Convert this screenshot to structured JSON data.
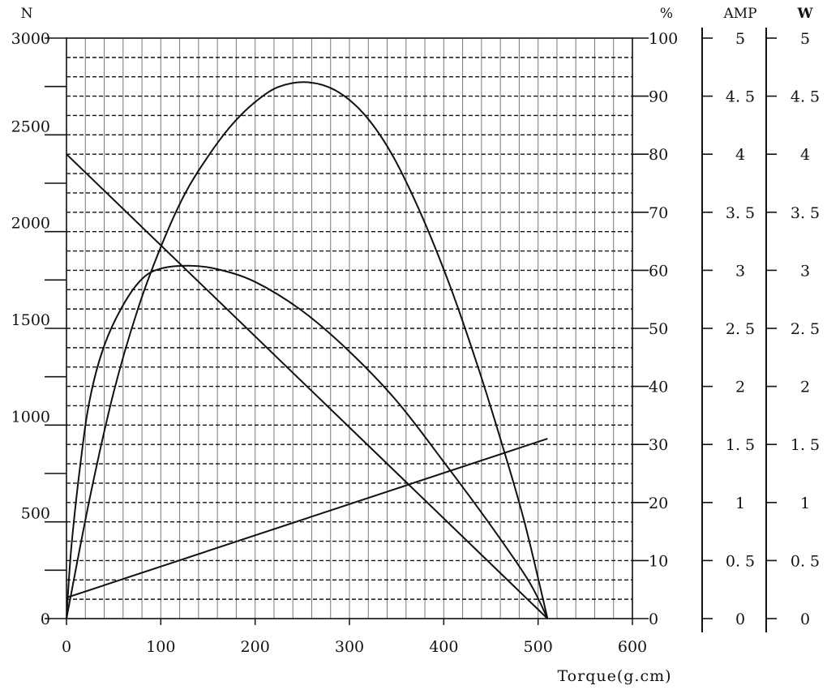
{
  "chart_data": {
    "type": "line",
    "xlabel": "Torque(g.cm)",
    "xlim": [
      0,
      600
    ],
    "x_ticks": [
      "0",
      "100",
      "200",
      "300",
      "400",
      "500",
      "600"
    ],
    "grid": true,
    "axes": {
      "left": {
        "unit": "N",
        "ylim": [
          0,
          3000
        ],
        "tick_labels": [
          {
            "value": 0,
            "label": "0"
          },
          {
            "value": 500,
            "label": "500"
          },
          {
            "value": 1000,
            "label": "1000"
          },
          {
            "value": 1500,
            "label": "1500"
          },
          {
            "value": 2000,
            "label": "2000"
          },
          {
            "value": 2500,
            "label": "2500"
          },
          {
            "value": 3000,
            "label": "3000"
          }
        ]
      },
      "percent": {
        "unit": "%",
        "ylim": [
          0,
          100
        ],
        "tick_labels": [
          "0",
          "10",
          "20",
          "30",
          "40",
          "50",
          "60",
          "70",
          "80",
          "90",
          "100"
        ]
      },
      "amp": {
        "unit": "AMP",
        "ylim": [
          0,
          5
        ],
        "tick_labels": [
          "0",
          "0. 5",
          "1",
          "1. 5",
          "2",
          "2. 5",
          "3",
          "3. 5",
          "4",
          "4. 5",
          "5"
        ]
      },
      "watt": {
        "unit": "W",
        "ylim": [
          0,
          5
        ],
        "tick_labels": [
          "0",
          "0. 5",
          "1",
          "1. 5",
          "2",
          "2. 5",
          "3",
          "3. 5",
          "4",
          "4. 5",
          "5"
        ]
      }
    },
    "series": [
      {
        "axis": "left",
        "points": [
          [
            0,
            2400
          ],
          [
            510,
            0
          ]
        ]
      },
      {
        "axis": "amp",
        "points": [
          [
            0,
            0.18
          ],
          [
            510,
            1.55
          ]
        ]
      },
      {
        "axis": "percent",
        "points": [
          [
            0,
            0
          ],
          [
            5,
            12
          ],
          [
            15,
            27
          ],
          [
            25,
            38
          ],
          [
            40,
            47
          ],
          [
            60,
            54
          ],
          [
            80,
            58.5
          ],
          [
            100,
            60.3
          ],
          [
            130,
            60.8
          ],
          [
            160,
            60.2
          ],
          [
            200,
            58
          ],
          [
            250,
            53
          ],
          [
            300,
            46
          ],
          [
            350,
            37.5
          ],
          [
            400,
            27
          ],
          [
            450,
            16
          ],
          [
            490,
            6.5
          ],
          [
            510,
            0
          ]
        ]
      },
      {
        "axis": "watt",
        "points": [
          [
            0,
            0
          ],
          [
            25,
            1.05
          ],
          [
            50,
            1.95
          ],
          [
            75,
            2.65
          ],
          [
            100,
            3.2
          ],
          [
            125,
            3.65
          ],
          [
            150,
            3.98
          ],
          [
            175,
            4.25
          ],
          [
            200,
            4.45
          ],
          [
            225,
            4.58
          ],
          [
            255,
            4.62
          ],
          [
            285,
            4.55
          ],
          [
            315,
            4.35
          ],
          [
            345,
            4.0
          ],
          [
            375,
            3.5
          ],
          [
            405,
            2.9
          ],
          [
            435,
            2.2
          ],
          [
            460,
            1.55
          ],
          [
            485,
            0.85
          ],
          [
            510,
            0
          ]
        ]
      }
    ]
  }
}
